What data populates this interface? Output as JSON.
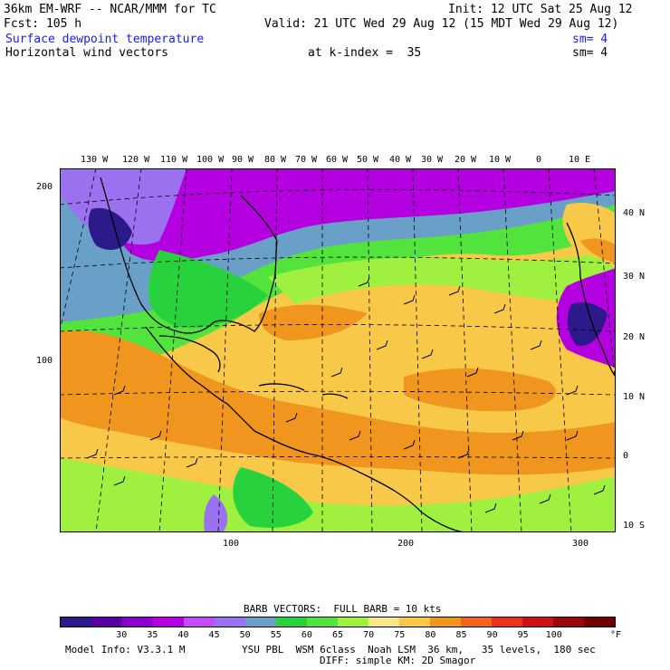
{
  "header": {
    "model": "36km EM-WRF -- NCAR/MMM for TC",
    "init": "Init: 12 UTC Sat 25 Aug 12",
    "fcst": "Fcst: 105 h",
    "valid": "Valid: 21 UTC Wed 29 Aug 12 (15 MDT Wed 29 Aug 12)",
    "field1": "Surface dewpoint temperature",
    "sm1": "sm= 4",
    "field2": "Horizontal wind vectors",
    "kindex": "at k-index =  35",
    "sm2": "sm= 4"
  },
  "map": {
    "top_lon_labels": [
      "130 W",
      "120 W",
      "110 W",
      "100 W",
      "90 W",
      "80 W",
      "70 W",
      "60 W",
      "50 W",
      "40 W",
      "30 W",
      "20 W",
      "10 W",
      "0",
      "10 E"
    ],
    "right_lat_labels": [
      "40 N",
      "30 N",
      "20 N",
      "10 N",
      "0",
      "10 S"
    ],
    "left_grid_labels": [
      "200",
      "100"
    ],
    "bottom_grid_labels": [
      "100",
      "200",
      "300"
    ]
  },
  "legend": {
    "title": "BARB VECTORS:  FULL BARB = 10 kts",
    "values": [
      "30",
      "35",
      "40",
      "45",
      "50",
      "55",
      "60",
      "65",
      "70",
      "75",
      "80",
      "85",
      "90",
      "95",
      "100"
    ],
    "unit": "°F",
    "colors": [
      "#2d1a8a",
      "#55009f",
      "#8a00c8",
      "#b400e0",
      "#c24cf5",
      "#9a72f0",
      "#6aa0c8",
      "#28d23c",
      "#52e33c",
      "#a0f040",
      "#f8e68c",
      "#f8c848",
      "#f0961e",
      "#f0641e",
      "#e8321e",
      "#c81414",
      "#960a0a",
      "#6e0000"
    ]
  },
  "footer": {
    "model_info": "Model Info: V3.3.1 M",
    "line1": "YSU PBL  WSM 6class  Noah LSM  36 km,   35 levels,  180 sec",
    "line2": "DIFF: simple KM: 2D Smagor"
  }
}
